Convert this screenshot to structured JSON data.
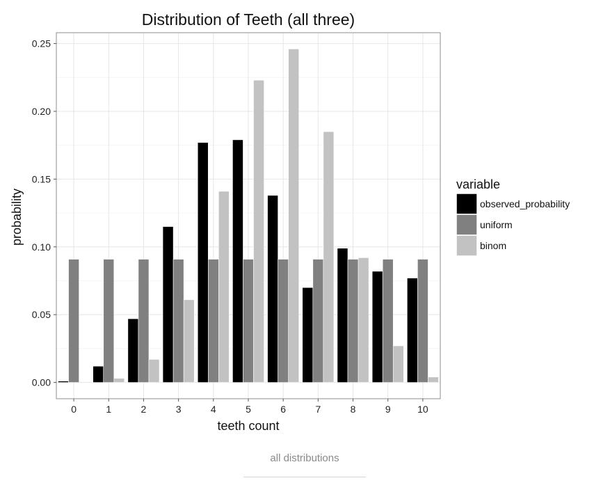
{
  "chart_data": {
    "type": "bar",
    "title": "Distribution of Teeth (all three)",
    "xlabel": "teeth count",
    "ylabel": "probability",
    "categories": [
      "0",
      "1",
      "2",
      "3",
      "4",
      "5",
      "6",
      "7",
      "8",
      "9",
      "10"
    ],
    "ylim": [
      -0.012,
      0.258
    ],
    "yticks": [
      "0.00",
      "0.05",
      "0.10",
      "0.15",
      "0.20",
      "0.25"
    ],
    "grid": true,
    "legend_title": "variable",
    "legend_position": "right",
    "series": [
      {
        "name": "observed_probability",
        "color": "#000000",
        "values": [
          0.001,
          0.012,
          0.047,
          0.115,
          0.177,
          0.179,
          0.138,
          0.07,
          0.099,
          0.082,
          0.077
        ]
      },
      {
        "name": "uniform",
        "color": "#808080",
        "values": [
          0.0909,
          0.0909,
          0.0909,
          0.0909,
          0.0909,
          0.0909,
          0.0909,
          0.0909,
          0.0909,
          0.0909,
          0.0909
        ]
      },
      {
        "name": "binom",
        "color": "#c2c2c2",
        "values": [
          0.0,
          0.003,
          0.017,
          0.061,
          0.141,
          0.223,
          0.246,
          0.185,
          0.092,
          0.027,
          0.004
        ]
      }
    ]
  },
  "caption": "all distributions"
}
